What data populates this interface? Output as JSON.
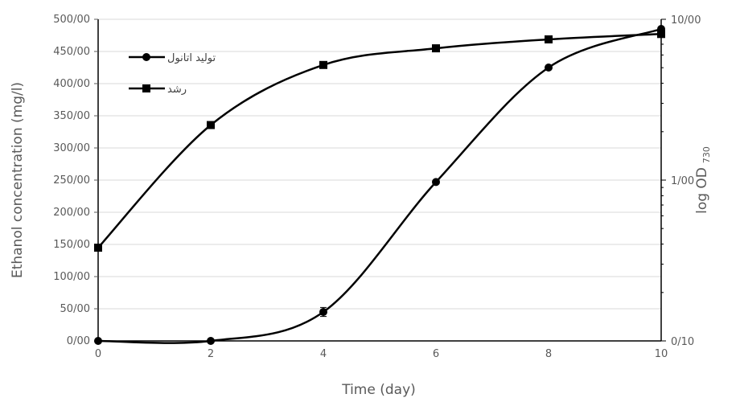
{
  "chart_data": {
    "type": "line",
    "x": [
      0,
      2,
      4,
      6,
      8,
      10
    ],
    "xlabel": "Time (day)",
    "xlim": [
      0,
      10
    ],
    "x_ticks": [
      "0",
      "2",
      "4",
      "6",
      "8",
      "10"
    ],
    "ylabel": "Ethanol concentration (mg/l)",
    "ylim": [
      0,
      500
    ],
    "y_ticks": [
      "0/00",
      "50/00",
      "100/00",
      "150/00",
      "200/00",
      "250/00",
      "300/00",
      "350/00",
      "400/00",
      "450/00",
      "500/00"
    ],
    "y2label": "log OD",
    "y2label_sub": "730",
    "y2lim": [
      0.1,
      10
    ],
    "y2scale": "log",
    "y2_ticks": [
      {
        "value": 0.1,
        "label": "0/10"
      },
      {
        "value": 1,
        "label": "1/00"
      },
      {
        "value": 10,
        "label": "10/00"
      }
    ],
    "grid": "horizontal",
    "legend_position": "top-left",
    "series": [
      {
        "name": "تولید اتانول",
        "axis": "left",
        "marker": "circle",
        "color": "#000000",
        "values": [
          0,
          0,
          45,
          247,
          425,
          485
        ],
        "errors": [
          0,
          0,
          7,
          0,
          0,
          0
        ]
      },
      {
        "name": "رشد",
        "axis": "right",
        "marker": "square",
        "color": "#000000",
        "values": [
          0.38,
          2.2,
          5.2,
          6.6,
          7.5,
          8.1
        ]
      }
    ]
  }
}
